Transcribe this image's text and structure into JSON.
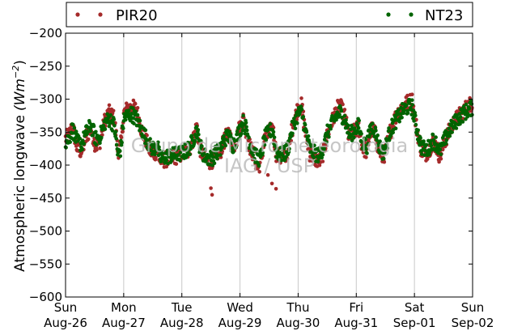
{
  "chart_data": {
    "type": "scatter",
    "ylabel": "Atmospheric longwave",
    "ylabel_unit": "(Wm",
    "ylabel_unit_exp": "−2",
    "ylabel_unit_close": ")",
    "ylim": [
      -600,
      -200
    ],
    "yticks": [
      -600,
      -550,
      -500,
      -450,
      -400,
      -350,
      -300,
      -250,
      -200
    ],
    "ytick_labels": [
      "−600",
      "−550",
      "−500",
      "−450",
      "−400",
      "−350",
      "−300",
      "−250",
      "−200"
    ],
    "xlim": [
      0,
      7
    ],
    "xticks": [
      {
        "day": "Sun",
        "date": "Aug-26"
      },
      {
        "day": "Mon",
        "date": "Aug-27"
      },
      {
        "day": "Tue",
        "date": "Aug-28"
      },
      {
        "day": "Wed",
        "date": "Aug-29"
      },
      {
        "day": "Thu",
        "date": "Aug-30"
      },
      {
        "day": "Fri",
        "date": "Aug-31"
      },
      {
        "day": "Sat",
        "date": "Sep-01"
      },
      {
        "day": "Sun",
        "date": "Sep-02"
      }
    ],
    "grid": "vertical",
    "legend_position": "top",
    "watermark": [
      "Grupo de Micrometeorologia",
      "IAG / USP"
    ],
    "series": [
      {
        "name": "PIR20",
        "color": "#a52a2a",
        "anchors": [
          [
            0,
            -360
          ],
          [
            0.06,
            -355
          ],
          [
            0.12,
            -340
          ],
          [
            0.2,
            -375
          ],
          [
            0.28,
            -380
          ],
          [
            0.36,
            -355
          ],
          [
            0.44,
            -345
          ],
          [
            0.52,
            -372
          ],
          [
            0.6,
            -362
          ],
          [
            0.68,
            -330
          ],
          [
            0.76,
            -320
          ],
          [
            0.84,
            -330
          ],
          [
            0.9,
            -380
          ],
          [
            0.95,
            -370
          ],
          [
            1.0,
            -322
          ],
          [
            1.06,
            -315
          ],
          [
            1.14,
            -312
          ],
          [
            1.22,
            -315
          ],
          [
            1.3,
            -345
          ],
          [
            1.38,
            -362
          ],
          [
            1.46,
            -380
          ],
          [
            1.52,
            -382
          ],
          [
            1.58,
            -378
          ],
          [
            1.62,
            -393
          ],
          [
            1.7,
            -392
          ],
          [
            1.8,
            -390
          ],
          [
            1.9,
            -387
          ],
          [
            2.0,
            -384
          ],
          [
            2.08,
            -380
          ],
          [
            2.14,
            -374
          ],
          [
            2.2,
            -358
          ],
          [
            2.26,
            -340
          ],
          [
            2.3,
            -372
          ],
          [
            2.38,
            -388
          ],
          [
            2.46,
            -395
          ],
          [
            2.54,
            -392
          ],
          [
            2.6,
            -382
          ],
          [
            2.66,
            -380
          ],
          [
            2.72,
            -365
          ],
          [
            2.8,
            -350
          ],
          [
            2.88,
            -372
          ],
          [
            2.94,
            -362
          ],
          [
            3.0,
            -340
          ],
          [
            3.06,
            -330
          ],
          [
            3.12,
            -352
          ],
          [
            3.18,
            -375
          ],
          [
            3.24,
            -385
          ],
          [
            3.3,
            -405
          ],
          [
            3.36,
            -395
          ],
          [
            3.42,
            -362
          ],
          [
            3.5,
            -352
          ],
          [
            3.56,
            -340
          ],
          [
            3.62,
            -382
          ],
          [
            3.7,
            -390
          ],
          [
            3.78,
            -385
          ],
          [
            3.84,
            -375
          ],
          [
            3.88,
            -352
          ],
          [
            3.94,
            -330
          ],
          [
            4.0,
            -312
          ],
          [
            4.06,
            -310
          ],
          [
            4.12,
            -348
          ],
          [
            4.2,
            -382
          ],
          [
            4.28,
            -390
          ],
          [
            4.36,
            -395
          ],
          [
            4.44,
            -380
          ],
          [
            4.5,
            -355
          ],
          [
            4.58,
            -335
          ],
          [
            4.66,
            -316
          ],
          [
            4.72,
            -310
          ],
          [
            4.8,
            -325
          ],
          [
            4.88,
            -360
          ],
          [
            4.96,
            -350
          ],
          [
            5.04,
            -342
          ],
          [
            5.1,
            -372
          ],
          [
            5.18,
            -380
          ],
          [
            5.24,
            -348
          ],
          [
            5.3,
            -345
          ],
          [
            5.38,
            -375
          ],
          [
            5.46,
            -390
          ],
          [
            5.52,
            -372
          ],
          [
            5.58,
            -350
          ],
          [
            5.66,
            -330
          ],
          [
            5.72,
            -320
          ],
          [
            5.8,
            -310
          ],
          [
            5.88,
            -305
          ],
          [
            5.96,
            -302
          ],
          [
            6.04,
            -345
          ],
          [
            6.12,
            -378
          ],
          [
            6.2,
            -382
          ],
          [
            6.26,
            -375
          ],
          [
            6.32,
            -365
          ],
          [
            6.38,
            -372
          ],
          [
            6.44,
            -388
          ],
          [
            6.52,
            -365
          ],
          [
            6.6,
            -348
          ],
          [
            6.7,
            -332
          ],
          [
            6.8,
            -322
          ],
          [
            6.9,
            -312
          ],
          [
            7.0,
            -305
          ]
        ]
      },
      {
        "name": "NT23",
        "color": "#006400",
        "anchors": [
          [
            0,
            -365
          ],
          [
            0.06,
            -360
          ],
          [
            0.12,
            -345
          ],
          [
            0.2,
            -365
          ],
          [
            0.28,
            -368
          ],
          [
            0.36,
            -350
          ],
          [
            0.44,
            -340
          ],
          [
            0.52,
            -360
          ],
          [
            0.6,
            -355
          ],
          [
            0.68,
            -335
          ],
          [
            0.76,
            -330
          ],
          [
            0.84,
            -340
          ],
          [
            0.9,
            -385
          ],
          [
            0.95,
            -375
          ],
          [
            1.0,
            -330
          ],
          [
            1.06,
            -325
          ],
          [
            1.14,
            -322
          ],
          [
            1.22,
            -330
          ],
          [
            1.3,
            -345
          ],
          [
            1.38,
            -358
          ],
          [
            1.46,
            -372
          ],
          [
            1.52,
            -375
          ],
          [
            1.58,
            -370
          ],
          [
            1.62,
            -390
          ],
          [
            1.7,
            -388
          ],
          [
            1.8,
            -386
          ],
          [
            1.9,
            -384
          ],
          [
            2.0,
            -382
          ],
          [
            2.08,
            -378
          ],
          [
            2.14,
            -372
          ],
          [
            2.2,
            -360
          ],
          [
            2.26,
            -345
          ],
          [
            2.3,
            -368
          ],
          [
            2.38,
            -385
          ],
          [
            2.46,
            -390
          ],
          [
            2.54,
            -388
          ],
          [
            2.6,
            -380
          ],
          [
            2.66,
            -378
          ],
          [
            2.72,
            -362
          ],
          [
            2.8,
            -355
          ],
          [
            2.88,
            -370
          ],
          [
            2.94,
            -360
          ],
          [
            3.0,
            -345
          ],
          [
            3.06,
            -335
          ],
          [
            3.12,
            -348
          ],
          [
            3.18,
            -370
          ],
          [
            3.24,
            -380
          ],
          [
            3.3,
            -392
          ],
          [
            3.36,
            -388
          ],
          [
            3.42,
            -360
          ],
          [
            3.5,
            -350
          ],
          [
            3.56,
            -345
          ],
          [
            3.62,
            -378
          ],
          [
            3.7,
            -385
          ],
          [
            3.78,
            -382
          ],
          [
            3.84,
            -370
          ],
          [
            3.88,
            -350
          ],
          [
            3.94,
            -335
          ],
          [
            4.0,
            -322
          ],
          [
            4.06,
            -320
          ],
          [
            4.12,
            -345
          ],
          [
            4.2,
            -375
          ],
          [
            4.28,
            -382
          ],
          [
            4.36,
            -385
          ],
          [
            4.44,
            -372
          ],
          [
            4.5,
            -352
          ],
          [
            4.58,
            -338
          ],
          [
            4.66,
            -325
          ],
          [
            4.72,
            -320
          ],
          [
            4.8,
            -330
          ],
          [
            4.88,
            -355
          ],
          [
            4.96,
            -348
          ],
          [
            5.04,
            -340
          ],
          [
            5.1,
            -365
          ],
          [
            5.18,
            -372
          ],
          [
            5.24,
            -345
          ],
          [
            5.3,
            -342
          ],
          [
            5.38,
            -368
          ],
          [
            5.46,
            -382
          ],
          [
            5.52,
            -368
          ],
          [
            5.58,
            -348
          ],
          [
            5.66,
            -335
          ],
          [
            5.72,
            -328
          ],
          [
            5.8,
            -318
          ],
          [
            5.88,
            -312
          ],
          [
            5.96,
            -312
          ],
          [
            6.04,
            -345
          ],
          [
            6.12,
            -372
          ],
          [
            6.2,
            -378
          ],
          [
            6.26,
            -372
          ],
          [
            6.32,
            -362
          ],
          [
            6.38,
            -368
          ],
          [
            6.44,
            -380
          ],
          [
            6.52,
            -362
          ],
          [
            6.6,
            -348
          ],
          [
            6.7,
            -335
          ],
          [
            6.8,
            -325
          ],
          [
            6.9,
            -318
          ],
          [
            7.0,
            -312
          ]
        ]
      }
    ]
  }
}
